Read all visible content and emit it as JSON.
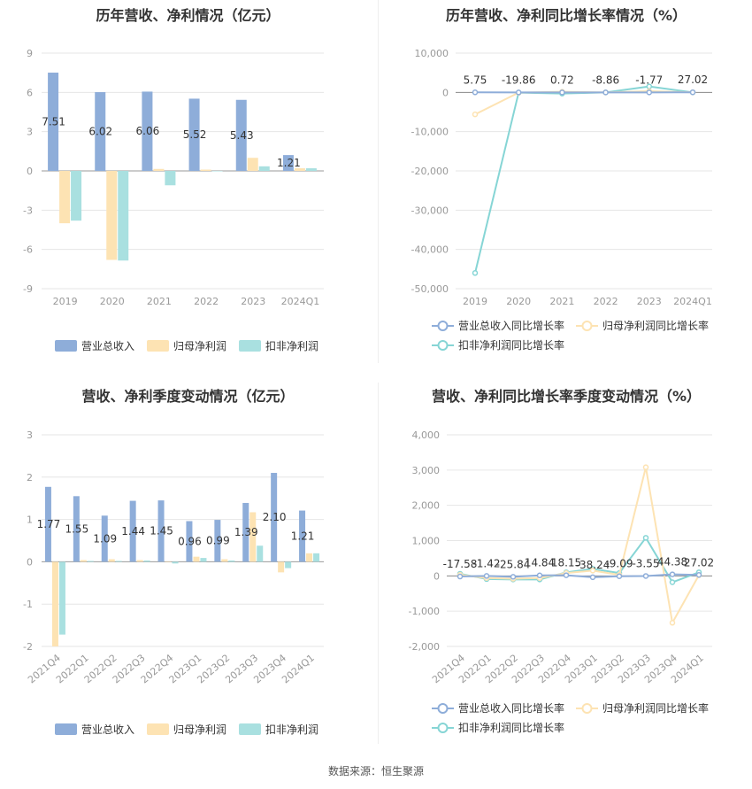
{
  "source": "数据来源：恒生聚源",
  "legend": {
    "bar_series": [
      "营业总收入",
      "归母净利润",
      "扣非净利润"
    ],
    "line_series": [
      "营业总收入同比增长率",
      "归母净利润同比增长率",
      "扣非净利润同比增长率"
    ]
  },
  "colors": {
    "revenue": "#8eadd9",
    "net_profit": "#fde3b3",
    "deducted_profit": "#a9e0e0",
    "revenue_line": "#8eadd9",
    "net_line": "#fde3b3",
    "deducted_line": "#86d5d5"
  },
  "chart_data": [
    {
      "type": "bar",
      "title": "历年营收、净利情况（亿元）",
      "categories": [
        "2019",
        "2020",
        "2021",
        "2022",
        "2023",
        "2024Q1"
      ],
      "ylim": [
        -9,
        9
      ],
      "yticks": [
        "9",
        "6",
        "3",
        "0",
        "-3",
        "-6",
        "-9"
      ],
      "series": [
        {
          "name": "营业总收入",
          "values": [
            7.51,
            6.02,
            6.06,
            5.52,
            5.43,
            1.21
          ]
        },
        {
          "name": "归母净利润",
          "values": [
            -4.0,
            -6.8,
            0.15,
            0.1,
            1.0,
            0.2
          ]
        },
        {
          "name": "扣非净利润",
          "values": [
            -3.8,
            -6.85,
            -1.1,
            0.0,
            0.35,
            0.2
          ]
        }
      ],
      "data_labels": [
        "7.51",
        "6.02",
        "6.06",
        "5.52",
        "5.43",
        "1.21"
      ],
      "grid": true,
      "legend_position": "bottom"
    },
    {
      "type": "line",
      "title": "历年营收、净利同比增长率情况（%）",
      "categories": [
        "2019",
        "2020",
        "2021",
        "2022",
        "2023",
        "2024Q1"
      ],
      "ylim": [
        -50000,
        10000
      ],
      "yticks": [
        "10,000",
        "0",
        "-10,000",
        "-20,000",
        "-30,000",
        "-40,000",
        "-50,000"
      ],
      "series": [
        {
          "name": "营业总收入同比增长率",
          "values": [
            5.75,
            -19.86,
            0.72,
            -8.86,
            -1.77,
            27.02
          ]
        },
        {
          "name": "归母净利润同比增长率",
          "values": [
            -5600,
            -70,
            150,
            -10,
            300,
            20
          ]
        },
        {
          "name": "扣非净利润同比增长率",
          "values": [
            -46000,
            -70,
            -300,
            0,
            1500,
            0
          ]
        }
      ],
      "data_labels": [
        "5.75",
        "-19.86",
        "0.72",
        "-8.86",
        "-1.77",
        "27.02"
      ],
      "grid": true,
      "legend_position": "bottom"
    },
    {
      "type": "bar",
      "title": "营收、净利季度变动情况（亿元）",
      "categories": [
        "2021Q4",
        "2022Q1",
        "2022Q2",
        "2022Q3",
        "2022Q4",
        "2023Q1",
        "2023Q2",
        "2023Q3",
        "2023Q4",
        "2024Q1"
      ],
      "ylim": [
        -2,
        3
      ],
      "yticks": [
        "3",
        "2",
        "1",
        "0",
        "-1",
        "-2"
      ],
      "series": [
        {
          "name": "营业总收入",
          "values": [
            1.77,
            1.55,
            1.09,
            1.44,
            1.45,
            0.96,
            0.99,
            1.39,
            2.1,
            1.21
          ]
        },
        {
          "name": "归母净利润",
          "values": [
            -2.0,
            0.04,
            0.06,
            0.04,
            0.0,
            0.12,
            0.06,
            1.17,
            -0.25,
            0.2
          ]
        },
        {
          "name": "扣非净利润",
          "values": [
            -1.72,
            0.02,
            0.02,
            0.03,
            -0.04,
            0.09,
            0.03,
            0.38,
            -0.15,
            0.2
          ]
        }
      ],
      "data_labels": [
        "1.77",
        "1.55",
        "1.09",
        "1.44",
        "1.45",
        "0.96",
        "0.99",
        "1.39",
        "2.10",
        "1.21"
      ],
      "grid": true,
      "legend_position": "bottom"
    },
    {
      "type": "line",
      "title": "营收、净利同比增长率季度变动情况（%）",
      "categories": [
        "2021Q4",
        "2022Q1",
        "2022Q2",
        "2022Q3",
        "2022Q4",
        "2023Q1",
        "2023Q2",
        "2023Q3",
        "2023Q4",
        "2024Q1"
      ],
      "ylim": [
        -2000,
        4000
      ],
      "yticks": [
        "4,000",
        "3,000",
        "2,000",
        "1,000",
        "0",
        "-1,000",
        "-2,000"
      ],
      "series": [
        {
          "name": "营业总收入同比增长率",
          "values": [
            -17.58,
            -1.42,
            -25.84,
            14.84,
            18.15,
            -38.24,
            -9.09,
            -3.55,
            44.38,
            27.02
          ]
        },
        {
          "name": "归母净利润同比增长率",
          "values": [
            30,
            -60,
            -80,
            -60,
            80,
            150,
            30,
            3080,
            -1330,
            20
          ]
        },
        {
          "name": "扣非净利润同比增长率",
          "values": [
            60,
            -90,
            -100,
            -100,
            100,
            200,
            80,
            1080,
            -180,
            100
          ]
        }
      ],
      "data_labels": [
        "-17.58",
        "-1.42",
        "-25.84",
        "14.84",
        "18.15",
        "-38.24",
        "-9.09",
        "-3.55",
        "44.38",
        "27.02"
      ],
      "grid": true,
      "legend_position": "bottom"
    }
  ]
}
